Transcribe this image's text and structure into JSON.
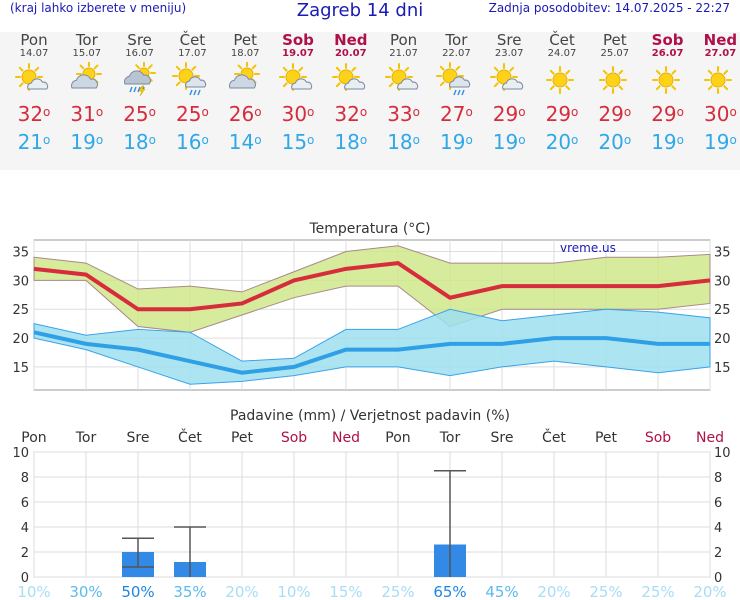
{
  "header": {
    "menu_hint": "(kraj lahko izberete v meniju)",
    "title": "Zagreb 14 dni",
    "updated": "Zadnja posodobitev: 14.07.2025 - 22:27"
  },
  "days": [
    {
      "name": "Pon",
      "date": "14.07",
      "weekend": false,
      "icon": "sun-cloud-icon",
      "hi": "32",
      "lo": "21"
    },
    {
      "name": "Tor",
      "date": "15.07",
      "weekend": false,
      "icon": "cloudy-sun-icon",
      "hi": "31",
      "lo": "19"
    },
    {
      "name": "Sre",
      "date": "16.07",
      "weekend": false,
      "icon": "thunderstorm-rain-icon",
      "hi": "25",
      "lo": "18"
    },
    {
      "name": "Čet",
      "date": "17.07",
      "weekend": false,
      "icon": "sun-cloud-rain-icon",
      "hi": "25",
      "lo": "16"
    },
    {
      "name": "Pet",
      "date": "18.07",
      "weekend": false,
      "icon": "cloudy-sun-icon",
      "hi": "26",
      "lo": "14"
    },
    {
      "name": "Sob",
      "date": "19.07",
      "weekend": true,
      "icon": "sun-cloud-icon",
      "hi": "30",
      "lo": "15"
    },
    {
      "name": "Ned",
      "date": "20.07",
      "weekend": true,
      "icon": "sun-cloud-icon",
      "hi": "32",
      "lo": "18"
    },
    {
      "name": "Pon",
      "date": "21.07",
      "weekend": false,
      "icon": "sun-cloud-icon",
      "hi": "33",
      "lo": "18"
    },
    {
      "name": "Tor",
      "date": "22.07",
      "weekend": false,
      "icon": "sun-cloud-rain-icon",
      "hi": "27",
      "lo": "19"
    },
    {
      "name": "Sre",
      "date": "23.07",
      "weekend": false,
      "icon": "sun-cloud-icon",
      "hi": "29",
      "lo": "19"
    },
    {
      "name": "Čet",
      "date": "24.07",
      "weekend": false,
      "icon": "sun-icon",
      "hi": "29",
      "lo": "20"
    },
    {
      "name": "Pet",
      "date": "25.07",
      "weekend": false,
      "icon": "sun-icon",
      "hi": "29",
      "lo": "20"
    },
    {
      "name": "Sob",
      "date": "26.07",
      "weekend": true,
      "icon": "sun-icon",
      "hi": "29",
      "lo": "19"
    },
    {
      "name": "Ned",
      "date": "27.07",
      "weekend": true,
      "icon": "sun-icon",
      "hi": "30",
      "lo": "19"
    }
  ],
  "chart_data": [
    {
      "type": "line",
      "title": "Temperatura (°C)",
      "watermark": "vreme.us",
      "ylim": [
        11,
        37
      ],
      "yticks": [
        15,
        20,
        25,
        30,
        35
      ],
      "grid": true,
      "x": [
        "14.07",
        "15.07",
        "16.07",
        "17.07",
        "18.07",
        "19.07",
        "20.07",
        "21.07",
        "22.07",
        "23.07",
        "24.07",
        "25.07",
        "26.07",
        "27.07"
      ],
      "series": [
        {
          "values": [
            32,
            31,
            25,
            25,
            26,
            30,
            32,
            33,
            27,
            29,
            29,
            29,
            29,
            30
          ],
          "color": "#d62c3c",
          "band_low": [
            30,
            30,
            22,
            21,
            24,
            27,
            29,
            29,
            22,
            25,
            25,
            25,
            25,
            26
          ],
          "band_high": [
            34,
            33,
            28.5,
            29,
            28,
            31.5,
            35,
            36,
            33,
            33,
            33,
            34,
            34,
            34.5
          ],
          "band_color": "#cfe88a"
        },
        {
          "values": [
            21,
            19,
            18,
            16,
            14,
            15,
            18,
            18,
            19,
            19,
            20,
            20,
            19,
            19
          ],
          "color": "#2f9fe6",
          "band_low": [
            20,
            18,
            15,
            12,
            12.5,
            13.5,
            15,
            15,
            13.5,
            15,
            16,
            15,
            14,
            15
          ],
          "band_high": [
            22.5,
            20.5,
            21.5,
            21,
            16,
            16.5,
            21.5,
            21.5,
            25,
            23,
            24,
            25,
            24.5,
            23.5
          ],
          "band_color": "#9fdff0"
        }
      ]
    },
    {
      "type": "bar",
      "title": "Padavine (mm) / Verjetnost padavin (%)",
      "ylim": [
        0,
        10
      ],
      "yticks": [
        "0",
        "2",
        "4",
        "6",
        "8",
        "10"
      ],
      "grid": true,
      "categories": [
        "Pon",
        "Tor",
        "Sre",
        "Čet",
        "Pet",
        "Sob",
        "Ned",
        "Pon",
        "Tor",
        "Sre",
        "Čet",
        "Pet",
        "Sob",
        "Ned"
      ],
      "weekend": [
        false,
        false,
        false,
        false,
        false,
        true,
        true,
        false,
        false,
        false,
        false,
        false,
        true,
        true
      ],
      "values": [
        0,
        0,
        2,
        1.2,
        0,
        0,
        0,
        0,
        2.6,
        0,
        0,
        0,
        0,
        0
      ],
      "errors": [
        null,
        null,
        [
          0.8,
          3.1
        ],
        [
          0,
          4
        ],
        null,
        null,
        null,
        null,
        [
          0,
          8.5
        ],
        null,
        null,
        null,
        null,
        null
      ],
      "bar_color": "#3389e6",
      "probability": [
        "10%",
        "30%",
        "50%",
        "35%",
        "20%",
        "10%",
        "15%",
        "25%",
        "65%",
        "45%",
        "20%",
        "25%",
        "25%",
        "20%"
      ]
    }
  ]
}
